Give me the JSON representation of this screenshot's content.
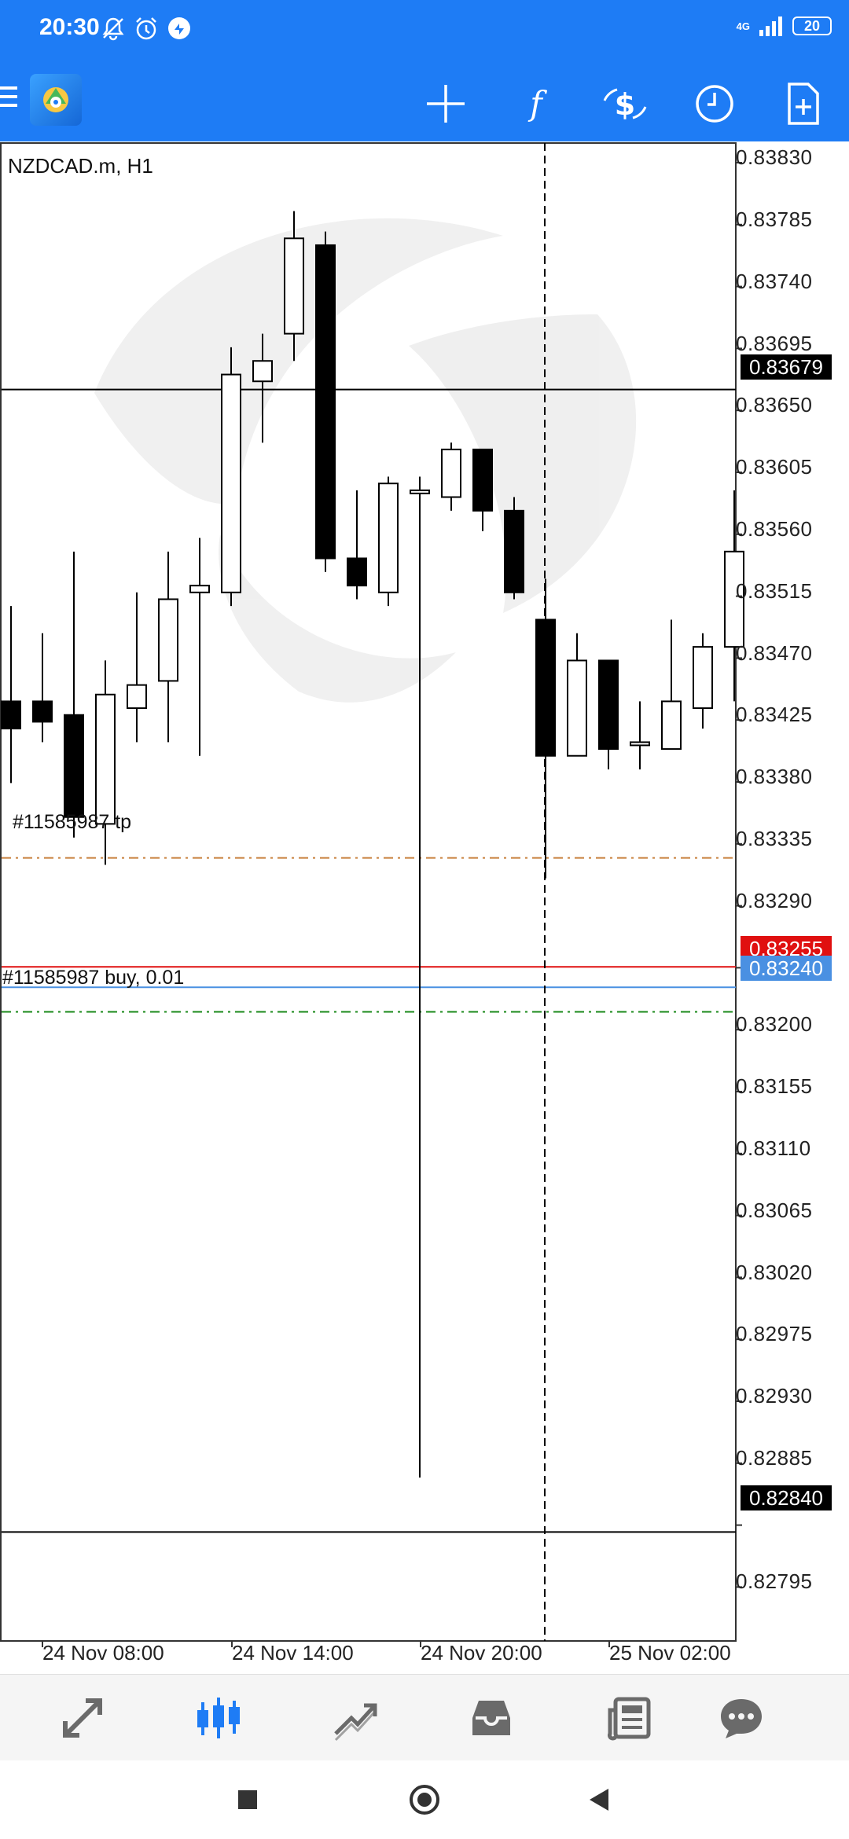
{
  "status_bar": {
    "time": "20:30",
    "network": "4G",
    "battery": "20",
    "icons": [
      "bell-off-icon",
      "alarm-icon",
      "app-notification-icon",
      "signal-icon",
      "battery-icon"
    ]
  },
  "toolbar": {
    "menu_icon": "hamburger-icon",
    "logo_icon": "metatrader-logo-icon",
    "tools": [
      {
        "name": "crosshair-tool",
        "icon": "crosshair-icon"
      },
      {
        "name": "indicators-tool",
        "icon": "function-icon",
        "glyph": "f"
      },
      {
        "name": "symbol-switch-tool",
        "icon": "currency-exchange-icon",
        "glyph": "$"
      },
      {
        "name": "timeframe-tool",
        "icon": "clock-icon"
      },
      {
        "name": "new-order-tool",
        "icon": "add-document-icon"
      }
    ]
  },
  "chart": {
    "symbol_label": "NZDCAD.m, H1",
    "price_ticks": [
      "0.83830",
      "0.83785",
      "0.83740",
      "0.83695",
      "0.83650",
      "0.83605",
      "0.83560",
      "0.83515",
      "0.83470",
      "0.83425",
      "0.83380",
      "0.83335",
      "0.83290",
      "0.83200",
      "0.83155",
      "0.83110",
      "0.83065",
      "0.83020",
      "0.82975",
      "0.82930",
      "0.82885",
      "0.82795"
    ],
    "price_boxes": [
      {
        "label": "0.83679",
        "color": "#000000"
      },
      {
        "label": "0.83255",
        "color": "#e01010"
      },
      {
        "label": "0.83240",
        "color": "#4a90e2"
      },
      {
        "label": "0.82840",
        "color": "#000000"
      }
    ],
    "time_ticks": [
      "24 Nov 08:00",
      "24 Nov 14:00",
      "24 Nov 20:00",
      "25 Nov 02:00"
    ],
    "order_labels": {
      "tp": "#11585987 tp",
      "buy": "#11585987 buy, 0.01"
    }
  },
  "chart_data": {
    "type": "candlestick",
    "title": "NZDCAD.m, H1",
    "ylim": [
      0.8276,
      0.8386
    ],
    "candles": [
      {
        "o": 0.8345,
        "h": 0.8352,
        "l": 0.8339,
        "c": 0.8343
      },
      {
        "o": 0.8345,
        "h": 0.835,
        "l": 0.8342,
        "c": 0.83435
      },
      {
        "o": 0.8344,
        "h": 0.8356,
        "l": 0.8335,
        "c": 0.83365
      },
      {
        "o": 0.8336,
        "h": 0.8348,
        "l": 0.8333,
        "c": 0.83455
      },
      {
        "o": 0.83445,
        "h": 0.8353,
        "l": 0.8342,
        "c": 0.83462
      },
      {
        "o": 0.83465,
        "h": 0.8356,
        "l": 0.8342,
        "c": 0.83525
      },
      {
        "o": 0.8353,
        "h": 0.8357,
        "l": 0.8341,
        "c": 0.83535
      },
      {
        "o": 0.8353,
        "h": 0.8371,
        "l": 0.8352,
        "c": 0.8369
      },
      {
        "o": 0.83685,
        "h": 0.8372,
        "l": 0.8364,
        "c": 0.837
      },
      {
        "o": 0.8372,
        "h": 0.8381,
        "l": 0.837,
        "c": 0.8379
      },
      {
        "o": 0.83785,
        "h": 0.83795,
        "l": 0.83545,
        "c": 0.83555
      },
      {
        "o": 0.83555,
        "h": 0.83605,
        "l": 0.83525,
        "c": 0.83535
      },
      {
        "o": 0.8353,
        "h": 0.83615,
        "l": 0.8352,
        "c": 0.8361
      },
      {
        "o": 0.83605,
        "h": 0.83615,
        "l": 0.8288,
        "c": 0.83605
      },
      {
        "o": 0.836,
        "h": 0.8364,
        "l": 0.8359,
        "c": 0.83635
      },
      {
        "o": 0.83635,
        "h": 0.83635,
        "l": 0.83575,
        "c": 0.8359
      },
      {
        "o": 0.8359,
        "h": 0.836,
        "l": 0.83525,
        "c": 0.8353
      },
      {
        "o": 0.8351,
        "h": 0.8354,
        "l": 0.8332,
        "c": 0.8341
      },
      {
        "o": 0.8341,
        "h": 0.835,
        "l": 0.8341,
        "c": 0.8348
      },
      {
        "o": 0.8348,
        "h": 0.8348,
        "l": 0.834,
        "c": 0.83415
      },
      {
        "o": 0.8342,
        "h": 0.8345,
        "l": 0.834,
        "c": 0.8342
      },
      {
        "o": 0.83415,
        "h": 0.8351,
        "l": 0.83415,
        "c": 0.8345
      },
      {
        "o": 0.83445,
        "h": 0.835,
        "l": 0.8343,
        "c": 0.8349
      },
      {
        "o": 0.8349,
        "h": 0.83605,
        "l": 0.8345,
        "c": 0.8356
      }
    ],
    "horizontal_lines": [
      {
        "price": 0.83679,
        "color": "#000000",
        "style": "solid"
      },
      {
        "price": 0.83335,
        "color": "#c8803c",
        "style": "dashdot"
      },
      {
        "price": 0.83255,
        "color": "#e01010",
        "style": "solid"
      },
      {
        "price": 0.8324,
        "color": "#4a90e2",
        "style": "solid"
      },
      {
        "price": 0.83222,
        "color": "#1a8a1a",
        "style": "dashdot"
      },
      {
        "price": 0.8284,
        "color": "#000000",
        "style": "solid"
      }
    ]
  },
  "bottom_nav": {
    "items": [
      {
        "name": "nav-quotes",
        "icon": "arrows-icon"
      },
      {
        "name": "nav-chart",
        "icon": "candles-icon",
        "active": true
      },
      {
        "name": "nav-trade",
        "icon": "trend-icon"
      },
      {
        "name": "nav-history",
        "icon": "inbox-icon"
      },
      {
        "name": "nav-news",
        "icon": "news-icon"
      },
      {
        "name": "nav-messages",
        "icon": "chat-icon"
      }
    ],
    "active_color": "#1e7cf5"
  }
}
